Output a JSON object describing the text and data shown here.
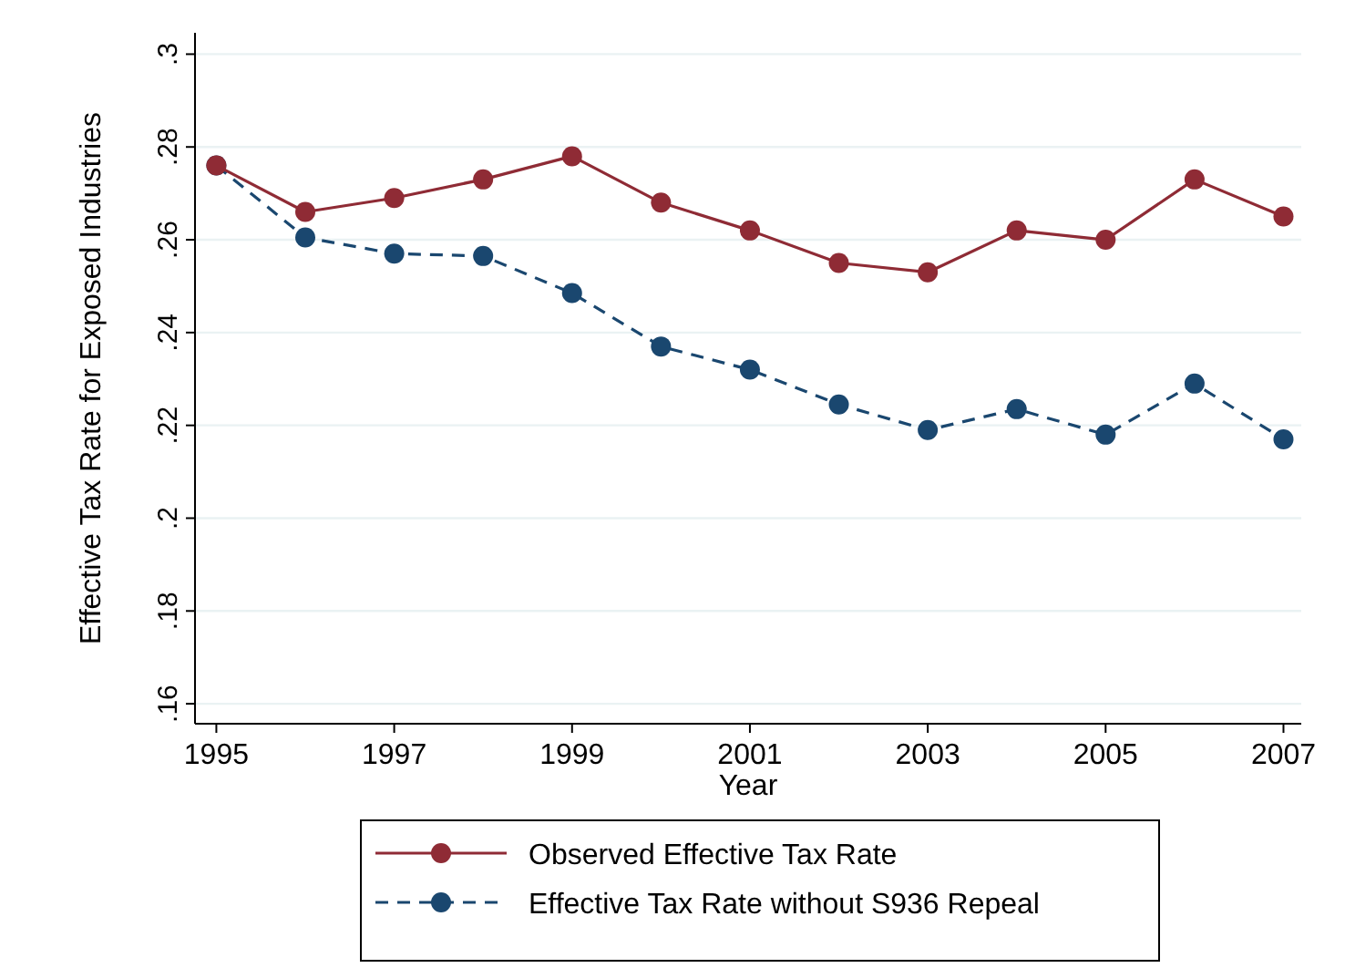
{
  "chart_data": {
    "type": "line",
    "xlabel": "Year",
    "ylabel": "Effective Tax Rate for Exposed Industries",
    "x": [
      1995,
      1996,
      1997,
      1998,
      1999,
      2000,
      2001,
      2002,
      2003,
      2004,
      2005,
      2006,
      2007
    ],
    "series": [
      {
        "name": "Observed Effective Tax Rate",
        "color": "#8f2b35",
        "line_style": "solid",
        "values": [
          0.276,
          0.266,
          0.269,
          0.273,
          0.278,
          0.268,
          0.262,
          0.255,
          0.253,
          0.262,
          0.26,
          0.273,
          0.265
        ]
      },
      {
        "name": "Effective Tax Rate without S936 Repeal",
        "color": "#1a476f",
        "line_style": "dashed",
        "values": [
          0.276,
          0.2605,
          0.257,
          0.2565,
          0.2485,
          0.237,
          0.232,
          0.2245,
          0.219,
          0.2235,
          0.218,
          0.229,
          0.217
        ]
      }
    ],
    "marker": "circle",
    "xlim": [
      1994.76,
      2007.2
    ],
    "xticks": [
      1995,
      1997,
      1999,
      2001,
      2003,
      2005,
      2007
    ],
    "ylim": [
      0.1557,
      0.3046
    ],
    "yticks": [
      {
        "value": 0.16,
        "label": ".16"
      },
      {
        "value": 0.18,
        "label": ".18"
      },
      {
        "value": 0.2,
        "label": ".2"
      },
      {
        "value": 0.22,
        "label": ".22"
      },
      {
        "value": 0.24,
        "label": ".24"
      },
      {
        "value": 0.26,
        "label": ".26"
      },
      {
        "value": 0.28,
        "label": ".28"
      },
      {
        "value": 0.3,
        "label": ".3"
      }
    ],
    "grid": "y",
    "legend": "bottom"
  }
}
